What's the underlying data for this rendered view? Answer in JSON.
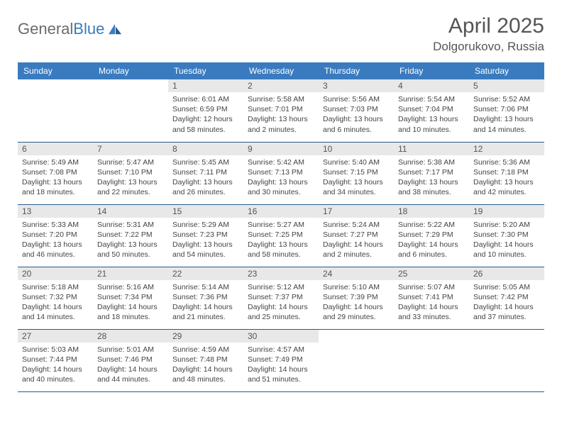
{
  "brand": {
    "part1": "General",
    "part2": "Blue"
  },
  "title": "April 2025",
  "location": "Dolgorukovo, Russia",
  "columns": [
    "Sunday",
    "Monday",
    "Tuesday",
    "Wednesday",
    "Thursday",
    "Friday",
    "Saturday"
  ],
  "colors": {
    "header_bg": "#3a7bbf",
    "header_text": "#ffffff",
    "daynum_bg": "#e8e8e8",
    "row_border": "#2a5a8a",
    "text": "#444444"
  },
  "weeks": [
    [
      null,
      null,
      {
        "n": "1",
        "sr": "6:01 AM",
        "ss": "6:59 PM",
        "dl": "12 hours and 58 minutes."
      },
      {
        "n": "2",
        "sr": "5:58 AM",
        "ss": "7:01 PM",
        "dl": "13 hours and 2 minutes."
      },
      {
        "n": "3",
        "sr": "5:56 AM",
        "ss": "7:03 PM",
        "dl": "13 hours and 6 minutes."
      },
      {
        "n": "4",
        "sr": "5:54 AM",
        "ss": "7:04 PM",
        "dl": "13 hours and 10 minutes."
      },
      {
        "n": "5",
        "sr": "5:52 AM",
        "ss": "7:06 PM",
        "dl": "13 hours and 14 minutes."
      }
    ],
    [
      {
        "n": "6",
        "sr": "5:49 AM",
        "ss": "7:08 PM",
        "dl": "13 hours and 18 minutes."
      },
      {
        "n": "7",
        "sr": "5:47 AM",
        "ss": "7:10 PM",
        "dl": "13 hours and 22 minutes."
      },
      {
        "n": "8",
        "sr": "5:45 AM",
        "ss": "7:11 PM",
        "dl": "13 hours and 26 minutes."
      },
      {
        "n": "9",
        "sr": "5:42 AM",
        "ss": "7:13 PM",
        "dl": "13 hours and 30 minutes."
      },
      {
        "n": "10",
        "sr": "5:40 AM",
        "ss": "7:15 PM",
        "dl": "13 hours and 34 minutes."
      },
      {
        "n": "11",
        "sr": "5:38 AM",
        "ss": "7:17 PM",
        "dl": "13 hours and 38 minutes."
      },
      {
        "n": "12",
        "sr": "5:36 AM",
        "ss": "7:18 PM",
        "dl": "13 hours and 42 minutes."
      }
    ],
    [
      {
        "n": "13",
        "sr": "5:33 AM",
        "ss": "7:20 PM",
        "dl": "13 hours and 46 minutes."
      },
      {
        "n": "14",
        "sr": "5:31 AM",
        "ss": "7:22 PM",
        "dl": "13 hours and 50 minutes."
      },
      {
        "n": "15",
        "sr": "5:29 AM",
        "ss": "7:23 PM",
        "dl": "13 hours and 54 minutes."
      },
      {
        "n": "16",
        "sr": "5:27 AM",
        "ss": "7:25 PM",
        "dl": "13 hours and 58 minutes."
      },
      {
        "n": "17",
        "sr": "5:24 AM",
        "ss": "7:27 PM",
        "dl": "14 hours and 2 minutes."
      },
      {
        "n": "18",
        "sr": "5:22 AM",
        "ss": "7:29 PM",
        "dl": "14 hours and 6 minutes."
      },
      {
        "n": "19",
        "sr": "5:20 AM",
        "ss": "7:30 PM",
        "dl": "14 hours and 10 minutes."
      }
    ],
    [
      {
        "n": "20",
        "sr": "5:18 AM",
        "ss": "7:32 PM",
        "dl": "14 hours and 14 minutes."
      },
      {
        "n": "21",
        "sr": "5:16 AM",
        "ss": "7:34 PM",
        "dl": "14 hours and 18 minutes."
      },
      {
        "n": "22",
        "sr": "5:14 AM",
        "ss": "7:36 PM",
        "dl": "14 hours and 21 minutes."
      },
      {
        "n": "23",
        "sr": "5:12 AM",
        "ss": "7:37 PM",
        "dl": "14 hours and 25 minutes."
      },
      {
        "n": "24",
        "sr": "5:10 AM",
        "ss": "7:39 PM",
        "dl": "14 hours and 29 minutes."
      },
      {
        "n": "25",
        "sr": "5:07 AM",
        "ss": "7:41 PM",
        "dl": "14 hours and 33 minutes."
      },
      {
        "n": "26",
        "sr": "5:05 AM",
        "ss": "7:42 PM",
        "dl": "14 hours and 37 minutes."
      }
    ],
    [
      {
        "n": "27",
        "sr": "5:03 AM",
        "ss": "7:44 PM",
        "dl": "14 hours and 40 minutes."
      },
      {
        "n": "28",
        "sr": "5:01 AM",
        "ss": "7:46 PM",
        "dl": "14 hours and 44 minutes."
      },
      {
        "n": "29",
        "sr": "4:59 AM",
        "ss": "7:48 PM",
        "dl": "14 hours and 48 minutes."
      },
      {
        "n": "30",
        "sr": "4:57 AM",
        "ss": "7:49 PM",
        "dl": "14 hours and 51 minutes."
      },
      null,
      null,
      null
    ]
  ]
}
